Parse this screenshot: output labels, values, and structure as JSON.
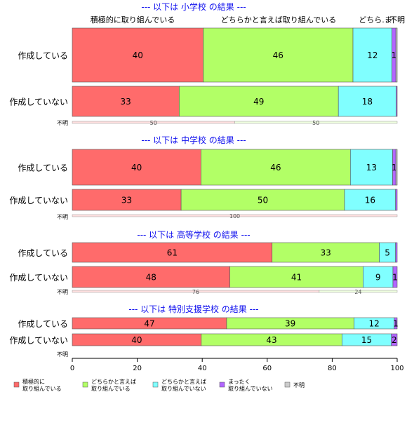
{
  "chart_data": {
    "type": "bar",
    "orientation": "horizontal",
    "stacked": true,
    "xlim": [
      0,
      100
    ],
    "xticks": [
      "0",
      "20",
      "40",
      "60",
      "80",
      "100"
    ],
    "top_category_labels": [
      "積極的に取り組んでいる",
      "どちらかと言えば取り組んでいる",
      "どちら.ま",
      "不明"
    ],
    "legend": [
      {
        "label": "積極的に\n取り組んでいる",
        "color": "#ff6b6b"
      },
      {
        "label": "どちらかと言えば\n取り組んでいる",
        "color": "#b2ff66"
      },
      {
        "label": "どちらかと言えば\n取り組んでいない",
        "color": "#80ffff"
      },
      {
        "label": "まったく\n取り組んでいない",
        "color": "#b266ff"
      },
      {
        "label": "不明",
        "color": "#cccccc"
      }
    ],
    "panels": [
      {
        "title": "--- 以下は 小学校 の結果 ---",
        "rows": [
          {
            "label": "作成している",
            "values": [
              40.3,
              46.1,
              12.0,
              1.2,
              0.4
            ],
            "labels": [
              "40",
              "46",
              "12",
              "1",
              ""
            ]
          },
          {
            "label": "作成していない",
            "values": [
              32.9,
              49.0,
              17.8,
              0.3,
              0.0
            ],
            "labels": [
              "33",
              "49",
              "18",
              "",
              ""
            ]
          }
        ],
        "unknown": {
          "label": "不明",
          "values": [
            50,
            50
          ],
          "labels": [
            "50",
            "50"
          ]
        }
      },
      {
        "title": "--- 以下は 中学校 の結果 ---",
        "rows": [
          {
            "label": "作成している",
            "values": [
              39.6,
              46.0,
              13.0,
              1.0,
              0.4
            ],
            "labels": [
              "40",
              "46",
              "13",
              "1",
              ""
            ]
          },
          {
            "label": "作成していない",
            "values": [
              33.5,
              50.3,
              15.7,
              0.5,
              0.0
            ],
            "labels": [
              "33",
              "50",
              "16",
              "",
              ""
            ]
          }
        ],
        "unknown": {
          "label": "不明",
          "values": [
            100
          ],
          "labels": [
            "100"
          ]
        }
      },
      {
        "title": "--- 以下は 高等学校 の結果 ---",
        "rows": [
          {
            "label": "作成している",
            "values": [
              61.5,
              33.0,
              5.0,
              0.5,
              0.0
            ],
            "labels": [
              "61",
              "33",
              "5",
              "",
              ""
            ]
          },
          {
            "label": "作成していない",
            "values": [
              48.5,
              41.0,
              9.2,
              1.3,
              0.0
            ],
            "labels": [
              "48",
              "41",
              "9",
              "1",
              ""
            ]
          }
        ],
        "unknown": {
          "label": "不明",
          "values": [
            76,
            24
          ],
          "labels": [
            "76",
            "24"
          ]
        }
      },
      {
        "title": "--- 以下は 特別支援学校 の結果 ---",
        "rows": [
          {
            "label": "作成している",
            "values": [
              47.5,
              39.2,
              12.4,
              0.9,
              0.0
            ],
            "labels": [
              "47",
              "39",
              "12",
              "1",
              ""
            ]
          },
          {
            "label": "作成していない",
            "values": [
              39.7,
              43.3,
              15.2,
              1.8,
              0.0
            ],
            "labels": [
              "40",
              "43",
              "15",
              "2",
              ""
            ]
          }
        ],
        "unknown": {
          "label": "不明",
          "values": [],
          "labels": []
        }
      }
    ]
  }
}
